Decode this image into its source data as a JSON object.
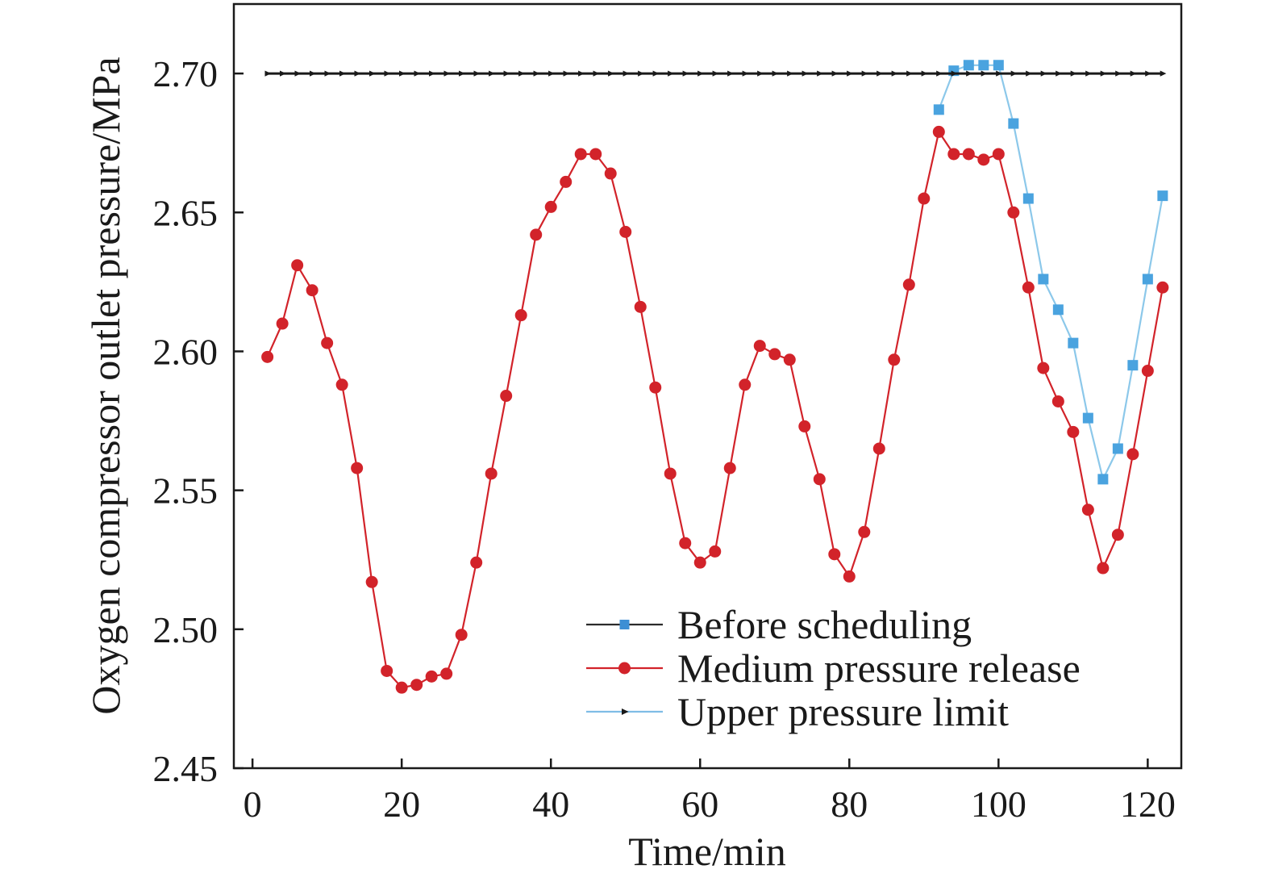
{
  "chart_data": {
    "type": "line",
    "title": "",
    "xlabel": "Time/min",
    "ylabel": "Oxygen compressor outlet pressure/MPa",
    "xlim": [
      -2.5,
      124.5
    ],
    "ylim": [
      2.45,
      2.725
    ],
    "xticks": [
      0,
      20,
      40,
      60,
      80,
      100,
      120
    ],
    "yticks": [
      2.45,
      2.5,
      2.55,
      2.6,
      2.65,
      2.7
    ],
    "ytick_labels": [
      "2.45",
      "2.50",
      "2.55",
      "2.60",
      "2.65",
      "2.70"
    ],
    "grid": false,
    "legend_position": "bottom-right",
    "series": [
      {
        "name": "Before scheduling",
        "color": "#4aa3df",
        "line_color": "#8cc8ea",
        "marker": "square",
        "x": [
          92,
          94,
          96,
          98,
          100,
          102,
          104,
          106,
          108,
          110,
          112,
          114,
          116,
          118,
          120,
          122
        ],
        "y": [
          2.687,
          2.701,
          2.703,
          2.703,
          2.703,
          2.682,
          2.655,
          2.626,
          2.615,
          2.603,
          2.576,
          2.554,
          2.565,
          2.595,
          2.626,
          2.656
        ]
      },
      {
        "name": "Medium pressure release",
        "color": "#d2232a",
        "line_color": "#d2232a",
        "marker": "circle",
        "x": [
          2,
          4,
          6,
          8,
          10,
          12,
          14,
          16,
          18,
          20,
          22,
          24,
          26,
          28,
          30,
          32,
          34,
          36,
          38,
          40,
          42,
          44,
          46,
          48,
          50,
          52,
          54,
          56,
          58,
          60,
          62,
          64,
          66,
          68,
          70,
          72,
          74,
          76,
          78,
          80,
          82,
          84,
          86,
          88,
          90,
          92,
          94,
          96,
          98,
          100,
          102,
          104,
          106,
          108,
          110,
          112,
          114,
          116,
          118,
          120,
          122
        ],
        "y": [
          2.598,
          2.61,
          2.631,
          2.622,
          2.603,
          2.588,
          2.558,
          2.517,
          2.485,
          2.479,
          2.48,
          2.483,
          2.484,
          2.498,
          2.524,
          2.556,
          2.584,
          2.613,
          2.642,
          2.652,
          2.661,
          2.671,
          2.671,
          2.664,
          2.643,
          2.616,
          2.587,
          2.556,
          2.531,
          2.524,
          2.528,
          2.558,
          2.588,
          2.602,
          2.599,
          2.597,
          2.573,
          2.554,
          2.527,
          2.519,
          2.535,
          2.565,
          2.597,
          2.624,
          2.655,
          2.679,
          2.671,
          2.671,
          2.669,
          2.671,
          2.65,
          2.623,
          2.594,
          2.582,
          2.571,
          2.543,
          2.522,
          2.534,
          2.563,
          2.593,
          2.623
        ]
      },
      {
        "name": "Upper pressure limit",
        "color": "#1a1a1a",
        "line_color": "#1a1a1a",
        "marker": "triangle",
        "x": [
          2,
          4,
          6,
          8,
          10,
          12,
          14,
          16,
          18,
          20,
          22,
          24,
          26,
          28,
          30,
          32,
          34,
          36,
          38,
          40,
          42,
          44,
          46,
          48,
          50,
          52,
          54,
          56,
          58,
          60,
          62,
          64,
          66,
          68,
          70,
          72,
          74,
          76,
          78,
          80,
          82,
          84,
          86,
          88,
          90,
          92,
          94,
          96,
          98,
          100,
          102,
          104,
          106,
          108,
          110,
          112,
          114,
          116,
          118,
          120,
          122
        ],
        "y": [
          2.7,
          2.7,
          2.7,
          2.7,
          2.7,
          2.7,
          2.7,
          2.7,
          2.7,
          2.7,
          2.7,
          2.7,
          2.7,
          2.7,
          2.7,
          2.7,
          2.7,
          2.7,
          2.7,
          2.7,
          2.7,
          2.7,
          2.7,
          2.7,
          2.7,
          2.7,
          2.7,
          2.7,
          2.7,
          2.7,
          2.7,
          2.7,
          2.7,
          2.7,
          2.7,
          2.7,
          2.7,
          2.7,
          2.7,
          2.7,
          2.7,
          2.7,
          2.7,
          2.7,
          2.7,
          2.7,
          2.7,
          2.7,
          2.7,
          2.7,
          2.7,
          2.7,
          2.7,
          2.7,
          2.7,
          2.7,
          2.7,
          2.7,
          2.7,
          2.7,
          2.7
        ]
      }
    ],
    "legend": [
      {
        "label": "Before scheduling",
        "line_color": "#2b2b2b",
        "marker_color": "#3d8fd4",
        "marker": "square"
      },
      {
        "label": "Medium pressure release",
        "line_color": "#d2232a",
        "marker_color": "#d2232a",
        "marker": "circle"
      },
      {
        "label": "Upper pressure limit",
        "line_color": "#7fbde6",
        "marker_color": "#1a1a1a",
        "marker": "triangle"
      }
    ]
  }
}
